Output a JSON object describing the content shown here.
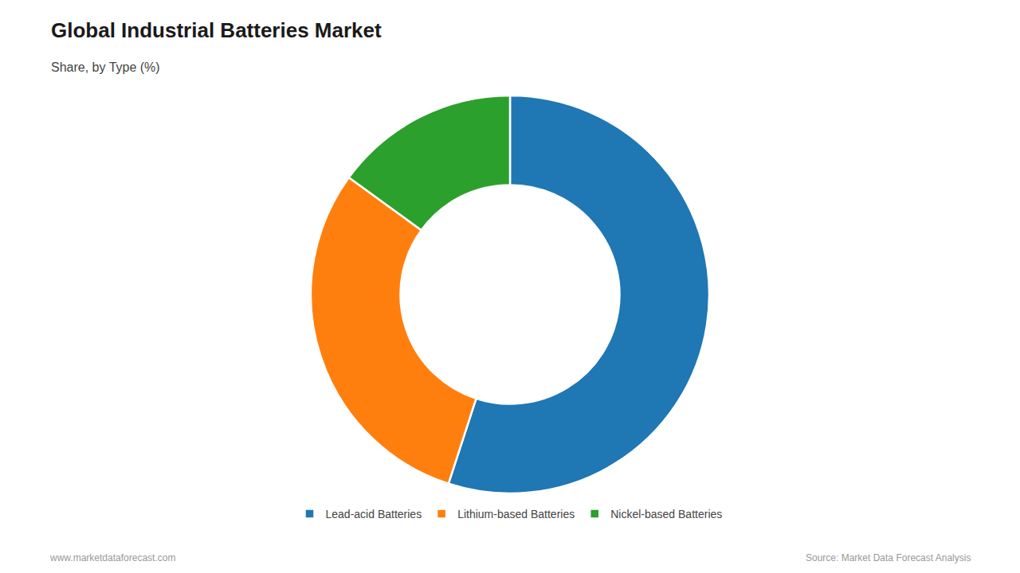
{
  "chart_data": {
    "type": "pie",
    "title": "Global Industrial Batteries Market",
    "subtitle": "Share, by Type (%)",
    "categories": [
      "Lead-acid Batteries",
      "Lithium-based Batteries",
      "Nickel-based Batteries"
    ],
    "values": [
      55,
      30,
      15
    ],
    "legend": "bottom",
    "annotations": [
      "www.marketdataforecast.com",
      "Source: Market Data Forecast Analysis"
    ]
  }
}
